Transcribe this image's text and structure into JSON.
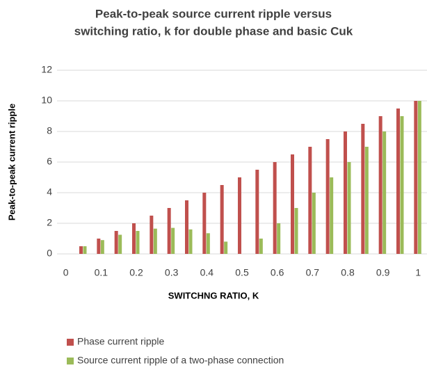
{
  "chart_data": {
    "type": "bar",
    "title": [
      "Peak-to-peak source current ripple versus",
      "switching ratio, k for double phase and basic Cuk"
    ],
    "x_label": "SWITCHNG RATIO, K",
    "y_label": "Peak-to-peak current ripple",
    "categories": [
      "0",
      null,
      "0.1",
      null,
      "0.2",
      null,
      "0.3",
      null,
      "0.4",
      null,
      "0.5",
      null,
      "0.6",
      null,
      "0.7",
      null,
      "0.8",
      null,
      "0.9",
      null,
      "1"
    ],
    "series": [
      {
        "name": "Phase current ripple",
        "color": "#c0504d",
        "values": [
          0,
          0.5,
          1,
          1.5,
          2,
          2.5,
          3,
          3.5,
          4,
          4.5,
          5,
          5.5,
          6,
          6.5,
          7,
          7.5,
          8,
          8.5,
          9,
          9.5,
          10
        ]
      },
      {
        "name": "Source current ripple of a two-phase connection",
        "color": "#9bbb59",
        "values": [
          0,
          0.5,
          0.9,
          1.25,
          1.5,
          1.65,
          1.7,
          1.6,
          1.35,
          0.8,
          0,
          1,
          2,
          3,
          4,
          5,
          6,
          7,
          8,
          9,
          10
        ]
      }
    ],
    "ylim": [
      0,
      12
    ],
    "yticks": [
      0,
      2,
      4,
      6,
      8,
      10,
      12
    ],
    "grid": true,
    "legend": "bottom"
  }
}
